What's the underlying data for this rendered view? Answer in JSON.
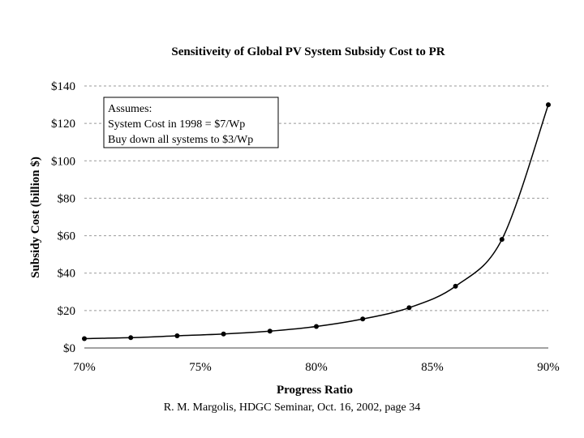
{
  "chart_data": {
    "type": "line",
    "title": "Sensitiveity of Global PV System Subsidy Cost to PR",
    "xlabel": "Progress Ratio",
    "ylabel": "Subsidy Cost (billion $)",
    "xlim": [
      0.7,
      0.9
    ],
    "ylim": [
      0,
      140
    ],
    "x_ticks": [
      0.7,
      0.75,
      0.8,
      0.85,
      0.9
    ],
    "x_tick_labels": [
      "70%",
      "75%",
      "80%",
      "85%",
      "90%"
    ],
    "y_ticks": [
      0,
      20,
      40,
      60,
      80,
      100,
      120,
      140
    ],
    "y_tick_labels": [
      "$0",
      "$20",
      "$40",
      "$60",
      "$80",
      "$100",
      "$120",
      "$140"
    ],
    "grid": "horizontal-dashed",
    "series": [
      {
        "x": [
          0.7,
          0.72,
          0.74,
          0.76,
          0.78,
          0.8,
          0.82,
          0.84,
          0.86,
          0.88,
          0.9
        ],
        "y": [
          5,
          5.5,
          6.5,
          7.5,
          9,
          11.5,
          15.5,
          21.5,
          33,
          58,
          130
        ]
      }
    ],
    "annotation": [
      "Assumes:",
      "System Cost in 1998 = $7/Wp",
      "Buy down all systems to $3/Wp"
    ]
  },
  "footer": "R. M. Margolis, HDGC Seminar, Oct. 16, 2002, page 34"
}
